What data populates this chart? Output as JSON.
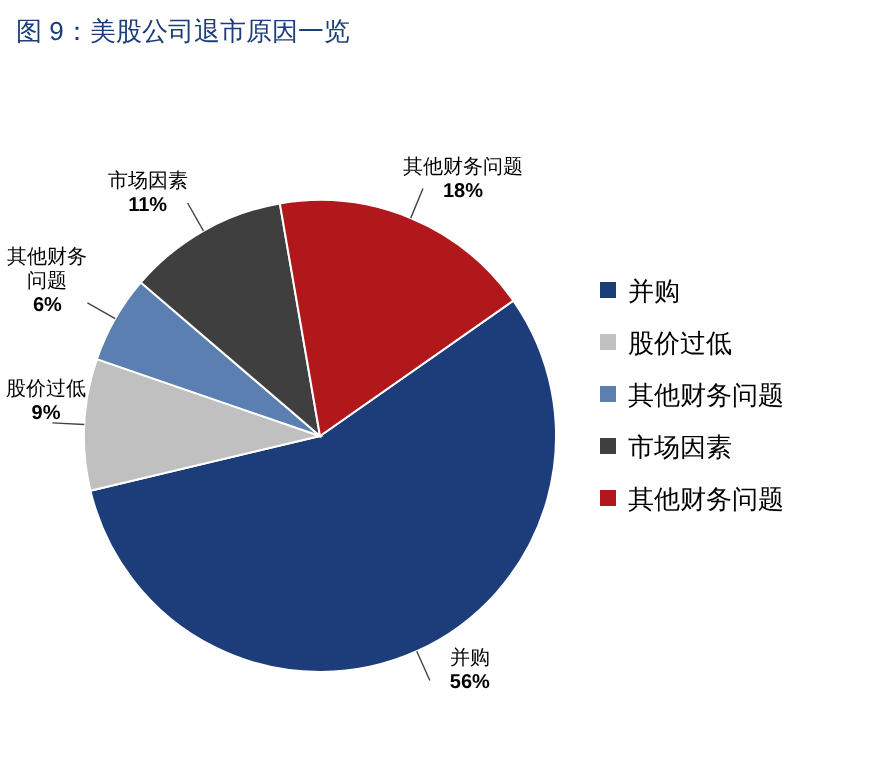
{
  "chart_data": {
    "type": "pie",
    "title": "图 9：美股公司退市原因一览",
    "categories": [
      "并购",
      "股价过低",
      "其他财务问题",
      "市场因素",
      "其他财务问题"
    ],
    "values": [
      56,
      9,
      6,
      11,
      18
    ],
    "colors": [
      "#1c3d7a",
      "#c0c0c0",
      "#5a7fb0",
      "#3f3f3f",
      "#b0181c"
    ],
    "value_labels": [
      "56%",
      "9%",
      "6%",
      "11%",
      "18%"
    ],
    "legend": "right"
  }
}
